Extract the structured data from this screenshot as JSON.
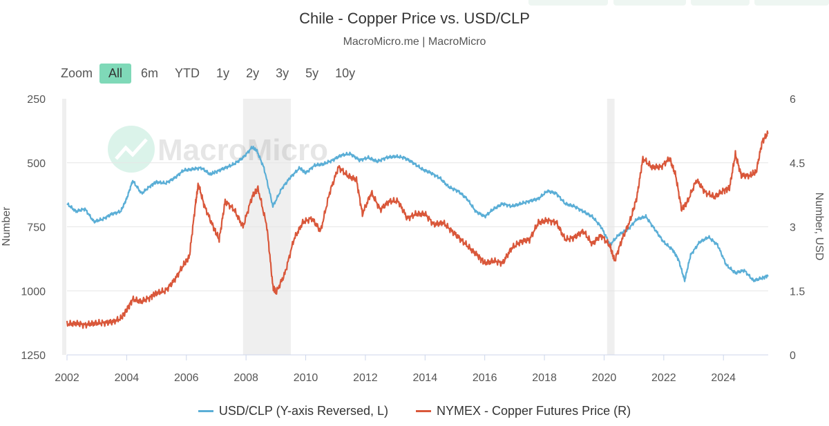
{
  "header": {
    "title": "Chile - Copper Price vs. USD/CLP",
    "subtitle": "MacroMicro.me | MacroMicro"
  },
  "zoom": {
    "label": "Zoom",
    "buttons": [
      "All",
      "6m",
      "YTD",
      "1y",
      "2y",
      "3y",
      "5y",
      "10y"
    ],
    "active": "All"
  },
  "watermark": "MacroMicro",
  "legend": [
    {
      "label": "USD/CLP (Y-axis Reversed, L)",
      "color": "#5aaed6"
    },
    {
      "label": "NYMEX - Copper Futures Price (R)",
      "color": "#d9573a"
    }
  ],
  "chart_data": {
    "type": "line",
    "xlabel": "",
    "ylabel_left": "Number",
    "ylabel_right": "Number, USD",
    "x_ticks": [
      "2002",
      "2004",
      "2006",
      "2008",
      "2010",
      "2012",
      "2014",
      "2016",
      "2018",
      "2020",
      "2022",
      "2024"
    ],
    "x_range": [
      2002,
      2025.5
    ],
    "y_left_ticks": [
      "250",
      "500",
      "750",
      "1000",
      "1250"
    ],
    "y_left_range": [
      250,
      1250
    ],
    "y_left_reversed": true,
    "y_right_ticks": [
      "6",
      "4.5",
      "3",
      "1.5",
      "0"
    ],
    "y_right_range": [
      0,
      6
    ],
    "grid": true,
    "legend_position": "bottom",
    "recession_bands": [
      [
        2007.9,
        2009.5
      ],
      [
        2020.1,
        2020.35
      ]
    ],
    "series": [
      {
        "name": "USD/CLP (Y-axis Reversed, L)",
        "axis": "left",
        "color": "#5aaed6",
        "x": [
          2002.0,
          2002.3,
          2002.6,
          2002.9,
          2003.2,
          2003.5,
          2003.8,
          2004.0,
          2004.2,
          2004.5,
          2004.8,
          2005.0,
          2005.3,
          2005.6,
          2005.9,
          2006.2,
          2006.5,
          2006.8,
          2007.0,
          2007.3,
          2007.6,
          2007.9,
          2008.2,
          2008.35,
          2008.6,
          2008.9,
          2009.2,
          2009.5,
          2009.8,
          2010.0,
          2010.3,
          2010.6,
          2010.9,
          2011.2,
          2011.5,
          2011.8,
          2012.1,
          2012.4,
          2012.7,
          2013.0,
          2013.3,
          2013.6,
          2013.9,
          2014.2,
          2014.5,
          2014.8,
          2015.1,
          2015.4,
          2015.7,
          2016.0,
          2016.3,
          2016.6,
          2016.9,
          2017.2,
          2017.5,
          2017.8,
          2018.1,
          2018.4,
          2018.7,
          2019.0,
          2019.3,
          2019.6,
          2019.9,
          2020.2,
          2020.5,
          2020.8,
          2021.1,
          2021.4,
          2021.7,
          2022.0,
          2022.3,
          2022.5,
          2022.7,
          2022.9,
          2023.2,
          2023.5,
          2023.8,
          2024.1,
          2024.4,
          2024.7,
          2025.0,
          2025.3,
          2025.5
        ],
        "y": [
          660,
          690,
          680,
          730,
          720,
          700,
          690,
          640,
          570,
          620,
          590,
          575,
          580,
          560,
          530,
          525,
          520,
          545,
          535,
          520,
          505,
          480,
          440,
          450,
          520,
          670,
          600,
          555,
          520,
          540,
          510,
          505,
          490,
          470,
          465,
          490,
          480,
          495,
          480,
          475,
          480,
          500,
          525,
          540,
          560,
          595,
          610,
          640,
          690,
          710,
          680,
          660,
          670,
          660,
          650,
          640,
          610,
          620,
          660,
          670,
          690,
          710,
          750,
          820,
          780,
          760,
          720,
          710,
          760,
          810,
          840,
          880,
          960,
          860,
          810,
          790,
          820,
          900,
          930,
          920,
          960,
          950,
          940
        ]
      },
      {
        "name": "NYMEX - Copper Futures Price (R)",
        "axis": "right",
        "color": "#d9573a",
        "x": [
          2002.0,
          2002.3,
          2002.6,
          2002.9,
          2003.2,
          2003.5,
          2003.8,
          2004.0,
          2004.2,
          2004.5,
          2004.8,
          2005.0,
          2005.3,
          2005.6,
          2005.9,
          2006.1,
          2006.3,
          2006.4,
          2006.6,
          2006.9,
          2007.1,
          2007.3,
          2007.6,
          2007.9,
          2008.2,
          2008.4,
          2008.7,
          2008.9,
          2009.0,
          2009.3,
          2009.6,
          2009.9,
          2010.2,
          2010.5,
          2010.8,
          2011.1,
          2011.4,
          2011.7,
          2011.9,
          2012.2,
          2012.5,
          2012.8,
          2013.1,
          2013.4,
          2013.7,
          2014.0,
          2014.3,
          2014.6,
          2014.9,
          2015.2,
          2015.5,
          2015.8,
          2016.0,
          2016.3,
          2016.6,
          2016.9,
          2017.2,
          2017.5,
          2017.8,
          2018.1,
          2018.4,
          2018.7,
          2019.0,
          2019.3,
          2019.6,
          2019.9,
          2020.2,
          2020.35,
          2020.6,
          2020.9,
          2021.1,
          2021.3,
          2021.6,
          2021.9,
          2022.2,
          2022.4,
          2022.6,
          2022.8,
          2023.1,
          2023.4,
          2023.7,
          2024.0,
          2024.2,
          2024.4,
          2024.6,
          2024.9,
          2025.1,
          2025.3,
          2025.5
        ],
        "y": [
          0.72,
          0.74,
          0.7,
          0.74,
          0.75,
          0.77,
          0.85,
          1.05,
          1.3,
          1.25,
          1.35,
          1.45,
          1.5,
          1.75,
          2.1,
          2.3,
          3.5,
          4.0,
          3.5,
          3.0,
          2.7,
          3.6,
          3.4,
          3.0,
          3.7,
          3.9,
          3.0,
          1.6,
          1.45,
          1.9,
          2.7,
          3.1,
          3.2,
          2.9,
          3.8,
          4.4,
          4.2,
          4.1,
          3.3,
          3.8,
          3.4,
          3.6,
          3.6,
          3.2,
          3.3,
          3.3,
          3.05,
          3.1,
          2.9,
          2.7,
          2.5,
          2.3,
          2.15,
          2.2,
          2.15,
          2.5,
          2.65,
          2.7,
          3.1,
          3.15,
          3.1,
          2.7,
          2.75,
          2.9,
          2.6,
          2.8,
          2.55,
          2.2,
          2.7,
          3.2,
          3.7,
          4.6,
          4.4,
          4.4,
          4.6,
          4.2,
          3.4,
          3.6,
          4.1,
          3.8,
          3.7,
          3.85,
          3.9,
          4.7,
          4.2,
          4.2,
          4.3,
          5.0,
          5.2
        ]
      }
    ]
  }
}
